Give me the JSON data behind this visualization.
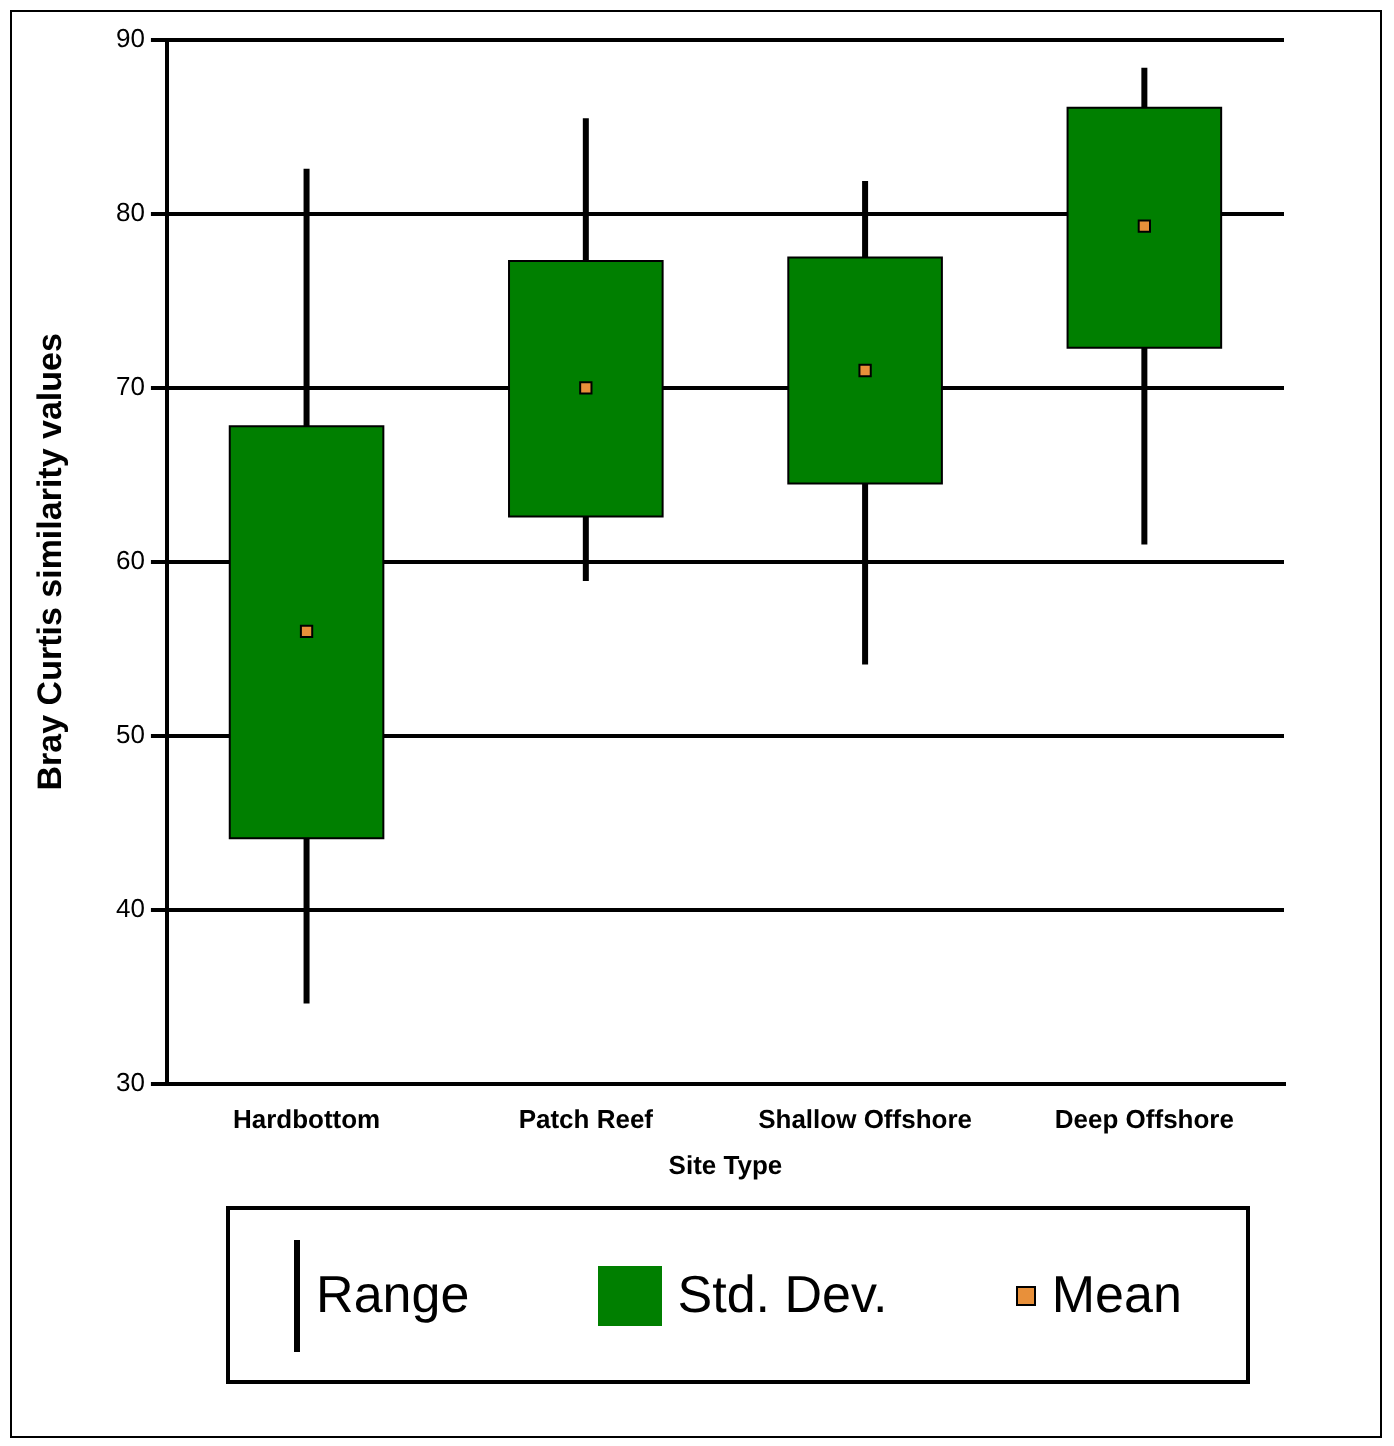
{
  "chart_data": {
    "type": "box",
    "xlabel": "Site Type",
    "ylabel": "Bray Curtis similarity values",
    "categories": [
      "Hardbottom",
      "Patch Reef",
      "Shallow Offshore",
      "Deep Offshore"
    ],
    "ylim": [
      30,
      90
    ],
    "yticks": [
      30,
      40,
      50,
      60,
      70,
      80,
      90
    ],
    "grid": "y",
    "legend": "bottom",
    "annotations": [
      "Range"
    ],
    "series": [
      {
        "name": "Std. Dev.",
        "color": "#007f00",
        "boxes": [
          {
            "low": 34.6,
            "q1": 44.1,
            "q3": 67.8,
            "high": 82.6
          },
          {
            "low": 58.9,
            "q1": 62.6,
            "q3": 77.3,
            "high": 85.5
          },
          {
            "low": 54.1,
            "q1": 64.5,
            "q3": 77.5,
            "high": 81.9
          },
          {
            "low": 61,
            "q1": 72.3,
            "q3": 86.1,
            "high": 88.4
          }
        ]
      },
      {
        "name": "Mean",
        "type": "scatter",
        "color": "#e8903a",
        "marker": "square",
        "values": [
          56,
          70,
          71,
          79.3
        ]
      }
    ]
  }
}
